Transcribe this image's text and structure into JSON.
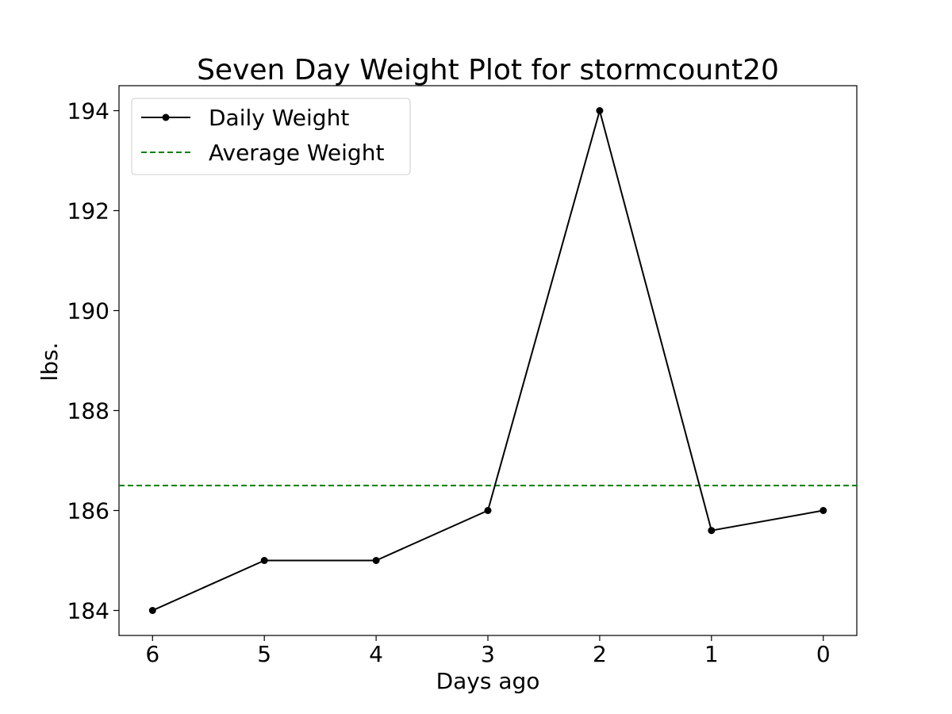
{
  "chart_data": {
    "type": "line",
    "title": "Seven Day Weight Plot for stormcount20",
    "xlabel": "Days ago",
    "ylabel": "lbs.",
    "x": [
      6,
      5,
      4,
      3,
      2,
      1,
      0
    ],
    "x_axis_reversed": true,
    "xlim": [
      6.3,
      -0.3
    ],
    "ylim": [
      183.5,
      194.5
    ],
    "yticks": [
      184,
      186,
      188,
      190,
      192,
      194
    ],
    "xticks": [
      6,
      5,
      4,
      3,
      2,
      1,
      0
    ],
    "grid": false,
    "legend_position": "top-left",
    "series": [
      {
        "name": "Daily Weight",
        "values": [
          184,
          185,
          185,
          186,
          194,
          185.6,
          186
        ],
        "color": "#000000",
        "style": "solid",
        "marker": "circle"
      }
    ],
    "reference_lines": [
      {
        "name": "Average Weight",
        "value": 186.5,
        "color": "#008000",
        "style": "dashed"
      }
    ]
  }
}
